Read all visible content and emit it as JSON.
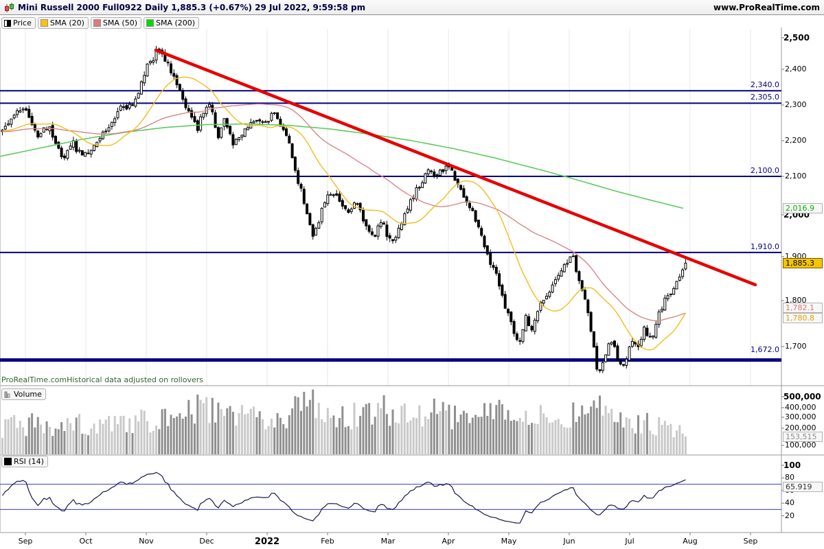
{
  "header": {
    "title": "Mini Russell 2000 Full0922 Daily 1,885.3 (+0.67%) 29 Jul 2022, 9:59:58 pm",
    "website": "www.ProRealTime.com"
  },
  "legend": {
    "items": [
      {
        "label": "Price",
        "swatch": "candle-black-white"
      },
      {
        "label": "SMA (20)",
        "swatch": "#ffc20a"
      },
      {
        "label": "SMA (50)",
        "swatch": "#e07a7a"
      },
      {
        "label": "SMA (200)",
        "swatch": "#00dd00"
      }
    ]
  },
  "notes": {
    "brand": "ProRealTime.com",
    "text": "Historical data adjusted on rollovers"
  },
  "colors": {
    "navy_level": "#000080",
    "trendline_red": "#e60000",
    "sma20_line": "#f2bd1d",
    "sma50_line": "#d98585",
    "sma200_line": "#5ccc5c",
    "candle_up": "#ffffff",
    "candle_down": "#000000",
    "volume_up": "#c9c9c9",
    "volume_down": "#8f8f8f",
    "rsi_line": "#16164a",
    "rsi_threshold": "#3a3acc",
    "grid": "#e7e7e7",
    "panel_border": "#9a9a9a",
    "last_price_badge_bg": "#f6c500"
  },
  "x_axis": {
    "labels": [
      {
        "label": "Sep",
        "bold": false
      },
      {
        "label": "Oct",
        "bold": false
      },
      {
        "label": "Nov",
        "bold": false
      },
      {
        "label": "Dec",
        "bold": false
      },
      {
        "label": "2022",
        "bold": true
      },
      {
        "label": "Feb",
        "bold": false
      },
      {
        "label": "Mar",
        "bold": false
      },
      {
        "label": "Apr",
        "bold": false
      },
      {
        "label": "May",
        "bold": false
      },
      {
        "label": "Jun",
        "bold": false
      },
      {
        "label": "Jul",
        "bold": false
      },
      {
        "label": "Aug",
        "bold": false
      },
      {
        "label": "Sep",
        "bold": false
      }
    ]
  },
  "chart_data": {
    "price": {
      "type": "line",
      "style": "candlestick-daily",
      "instrument": "Mini Russell 2000 Full0922",
      "timeframe": "Daily",
      "last_price": 1885.3,
      "last_price_label": "1,885.3",
      "change_pct_label": "(+0.67%)",
      "ylim": [
        1600,
        2530
      ],
      "y_ticks": [
        {
          "label": "2,500",
          "value": 2500,
          "bold": true
        },
        {
          "label": "2,400",
          "value": 2400,
          "bold": false
        },
        {
          "label": "2,300",
          "value": 2300,
          "bold": false
        },
        {
          "label": "2,200",
          "value": 2200,
          "bold": false
        },
        {
          "label": "2,100",
          "value": 2100,
          "bold": false
        },
        {
          "label": "2,000",
          "value": 2000,
          "bold": true
        },
        {
          "label": "1,900",
          "value": 1900,
          "bold": false
        },
        {
          "label": "1,800",
          "value": 1800,
          "bold": false
        },
        {
          "label": "1,700",
          "value": 1700,
          "bold": false
        }
      ],
      "levels": [
        {
          "label": "2,340.0",
          "value": 2340.0,
          "thick": false
        },
        {
          "label": "2,305.0",
          "value": 2305.0,
          "thick": false
        },
        {
          "label": "2,100.0",
          "value": 2100.0,
          "thick": false
        },
        {
          "label": "1,910.0",
          "value": 1910.0,
          "thick": false
        },
        {
          "label": "1,672.0",
          "value": 1672.0,
          "thick": true
        }
      ],
      "trendline": {
        "x1": 227,
        "y1": 73,
        "x2": 1100,
        "y2": 415,
        "color": "#e60000"
      },
      "sma20_last": 1780.8,
      "sma20_last_label": "1,780.8",
      "sma50_last": 1782.1,
      "sma50_last_label": "1,782.1",
      "sma200_last": 2016.9,
      "sma200_last_label": "2,016.9",
      "close_path": [
        [
          0,
          2225
        ],
        [
          10,
          2250
        ],
        [
          30,
          2295
        ],
        [
          45,
          2250
        ],
        [
          55,
          2205
        ],
        [
          68,
          2245
        ],
        [
          78,
          2205
        ],
        [
          90,
          2150
        ],
        [
          105,
          2195
        ],
        [
          118,
          2150
        ],
        [
          135,
          2185
        ],
        [
          152,
          2230
        ],
        [
          175,
          2290
        ],
        [
          190,
          2295
        ],
        [
          200,
          2330
        ],
        [
          212,
          2405
        ],
        [
          228,
          2460
        ],
        [
          240,
          2430
        ],
        [
          250,
          2380
        ],
        [
          258,
          2340
        ],
        [
          268,
          2305
        ],
        [
          278,
          2260
        ],
        [
          286,
          2235
        ],
        [
          295,
          2280
        ],
        [
          305,
          2300
        ],
        [
          315,
          2210
        ],
        [
          325,
          2265
        ],
        [
          338,
          2185
        ],
        [
          350,
          2215
        ],
        [
          362,
          2240
        ],
        [
          375,
          2255
        ],
        [
          388,
          2260
        ],
        [
          398,
          2280
        ],
        [
          410,
          2230
        ],
        [
          420,
          2185
        ],
        [
          432,
          2090
        ],
        [
          444,
          2020
        ],
        [
          455,
          1945
        ],
        [
          462,
          1975
        ],
        [
          470,
          2030
        ],
        [
          482,
          2065
        ],
        [
          495,
          2040
        ],
        [
          505,
          1995
        ],
        [
          518,
          2035
        ],
        [
          530,
          1980
        ],
        [
          542,
          1940
        ],
        [
          552,
          1995
        ],
        [
          562,
          1955
        ],
        [
          572,
          1930
        ],
        [
          582,
          1975
        ],
        [
          595,
          2030
        ],
        [
          610,
          2080
        ],
        [
          622,
          2120
        ],
        [
          632,
          2100
        ],
        [
          645,
          2125
        ],
        [
          655,
          2115
        ],
        [
          668,
          2075
        ],
        [
          678,
          2025
        ],
        [
          690,
          1995
        ],
        [
          700,
          1945
        ],
        [
          712,
          1890
        ],
        [
          722,
          1855
        ],
        [
          735,
          1785
        ],
        [
          748,
          1730
        ],
        [
          757,
          1705
        ],
        [
          765,
          1770
        ],
        [
          772,
          1735
        ],
        [
          782,
          1785
        ],
        [
          795,
          1805
        ],
        [
          808,
          1845
        ],
        [
          820,
          1885
        ],
        [
          832,
          1900
        ],
        [
          842,
          1850
        ],
        [
          852,
          1795
        ],
        [
          862,
          1710
        ],
        [
          870,
          1640
        ],
        [
          878,
          1675
        ],
        [
          888,
          1715
        ],
        [
          897,
          1680
        ],
        [
          907,
          1660
        ],
        [
          917,
          1715
        ],
        [
          927,
          1695
        ],
        [
          936,
          1740
        ],
        [
          946,
          1715
        ],
        [
          953,
          1745
        ],
        [
          962,
          1785
        ],
        [
          972,
          1815
        ],
        [
          980,
          1825
        ],
        [
          988,
          1855
        ],
        [
          997,
          1885.3
        ]
      ],
      "sma200_path": [
        [
          0,
          2156
        ],
        [
          60,
          2180
        ],
        [
          120,
          2204
        ],
        [
          180,
          2223
        ],
        [
          240,
          2237
        ],
        [
          300,
          2245
        ],
        [
          360,
          2247
        ],
        [
          420,
          2243
        ],
        [
          480,
          2233
        ],
        [
          540,
          2218
        ],
        [
          600,
          2200
        ],
        [
          660,
          2178
        ],
        [
          720,
          2152
        ],
        [
          780,
          2122
        ],
        [
          840,
          2091
        ],
        [
          900,
          2060
        ],
        [
          950,
          2037
        ],
        [
          995,
          2016.9
        ]
      ]
    },
    "volume": {
      "type": "bar",
      "legend": "Volume",
      "last_value": 153515,
      "last_value_label": "153,515",
      "y_ticks": [
        {
          "label": "500,000",
          "value": 500000,
          "bold": true
        },
        {
          "label": "400,000",
          "value": 400000,
          "bold": false
        },
        {
          "label": "300,000",
          "value": 300000,
          "bold": false
        },
        {
          "label": "200,000",
          "value": 200000,
          "bold": false
        },
        {
          "label": "100,000",
          "value": 100000,
          "bold": false
        }
      ],
      "envelope": [
        [
          0,
          230000
        ],
        [
          40,
          260000
        ],
        [
          80,
          230000
        ],
        [
          120,
          250000
        ],
        [
          160,
          240000
        ],
        [
          200,
          280000
        ],
        [
          240,
          300000
        ],
        [
          270,
          330000
        ],
        [
          290,
          400000
        ],
        [
          310,
          360000
        ],
        [
          330,
          390000
        ],
        [
          360,
          300000
        ],
        [
          390,
          280000
        ],
        [
          420,
          330000
        ],
        [
          440,
          430000
        ],
        [
          452,
          470000
        ],
        [
          465,
          380000
        ],
        [
          480,
          310000
        ],
        [
          500,
          300000
        ],
        [
          520,
          330000
        ],
        [
          540,
          380000
        ],
        [
          558,
          400000
        ],
        [
          575,
          330000
        ],
        [
          600,
          300000
        ],
        [
          620,
          330000
        ],
        [
          640,
          360000
        ],
        [
          660,
          310000
        ],
        [
          680,
          320000
        ],
        [
          700,
          340000
        ],
        [
          720,
          370000
        ],
        [
          735,
          380000
        ],
        [
          760,
          340000
        ],
        [
          780,
          310000
        ],
        [
          800,
          290000
        ],
        [
          820,
          300000
        ],
        [
          840,
          330000
        ],
        [
          855,
          520000
        ],
        [
          868,
          430000
        ],
        [
          880,
          330000
        ],
        [
          895,
          280000
        ],
        [
          910,
          280000
        ],
        [
          925,
          250000
        ],
        [
          940,
          260000
        ],
        [
          955,
          230000
        ],
        [
          970,
          210000
        ],
        [
          985,
          180000
        ],
        [
          997,
          155000
        ]
      ]
    },
    "rsi": {
      "type": "line",
      "legend": "RSI (14)",
      "period": 14,
      "last_value": 65.919,
      "last_value_label": "65.919",
      "thresholds": [
        70,
        30
      ],
      "y_ticks": [
        {
          "label": "100",
          "value": 100,
          "bold": true
        },
        {
          "label": "80",
          "value": 80,
          "bold": false
        },
        {
          "label": "60",
          "value": 60,
          "bold": false
        },
        {
          "label": "40",
          "value": 40,
          "bold": false
        },
        {
          "label": "20",
          "value": 20,
          "bold": false
        }
      ]
    }
  }
}
